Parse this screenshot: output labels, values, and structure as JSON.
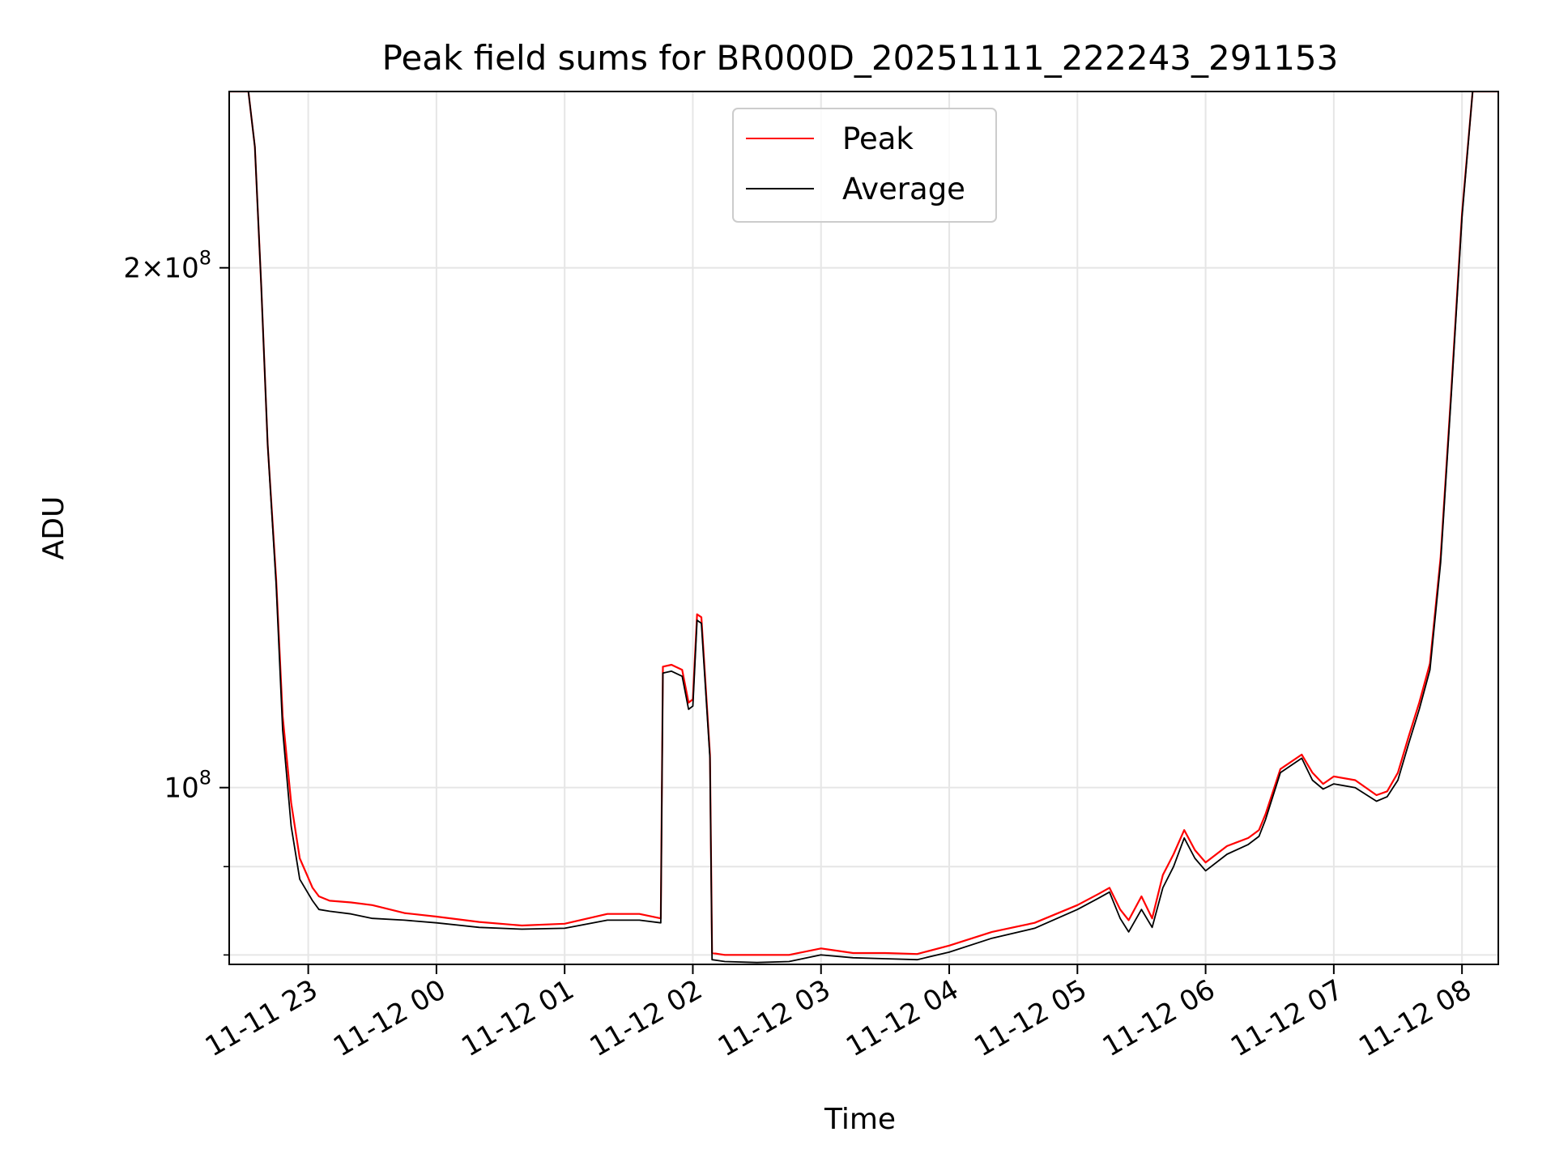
{
  "chart_data": {
    "type": "line",
    "title": "Peak field sums for BR000D_20251111_222243_291153",
    "xlabel": "Time",
    "ylabel": "ADU",
    "y_scale": "log",
    "ylim": [
      79000000,
      253000000
    ],
    "xlim": [
      "2025-11-11 22:23",
      "2025-11-12 08:17"
    ],
    "grid": true,
    "legend_position": "top-center",
    "x_ticks": [
      "2025-11-11 23:00",
      "2025-11-12 00:00",
      "2025-11-12 01:00",
      "2025-11-12 02:00",
      "2025-11-12 03:00",
      "2025-11-12 04:00",
      "2025-11-12 05:00",
      "2025-11-12 06:00",
      "2025-11-12 07:00",
      "2025-11-12 08:00"
    ],
    "x_tick_labels": [
      "11-11 23",
      "11-12 00",
      "11-12 01",
      "11-12 02",
      "11-12 03",
      "11-12 04",
      "11-12 05",
      "11-12 06",
      "11-12 07",
      "11-12 08"
    ],
    "y_ticks": [
      100000000,
      200000000
    ],
    "y_tick_labels": [
      {
        "base": "10",
        "exp": "8"
      },
      {
        "mantissa": "2",
        "base": "10",
        "exp": "8"
      }
    ],
    "series": [
      {
        "name": "Peak",
        "color": "#ff0000",
        "x": [
          "2025-11-11 22:23",
          "2025-11-11 22:32",
          "2025-11-11 22:35",
          "2025-11-11 22:38",
          "2025-11-11 22:41",
          "2025-11-11 22:45",
          "2025-11-11 22:48",
          "2025-11-11 22:52",
          "2025-11-11 22:56",
          "2025-11-11 23:02",
          "2025-11-11 23:05",
          "2025-11-11 23:10",
          "2025-11-11 23:20",
          "2025-11-11 23:30",
          "2025-11-11 23:45",
          "2025-11-12 00:00",
          "2025-11-12 00:20",
          "2025-11-12 00:40",
          "2025-11-12 01:00",
          "2025-11-12 01:20",
          "2025-11-12 01:35",
          "2025-11-12 01:45",
          "2025-11-12 01:46",
          "2025-11-12 01:50",
          "2025-11-12 01:55",
          "2025-11-12 01:58",
          "2025-11-12 02:00",
          "2025-11-12 02:02",
          "2025-11-12 02:04",
          "2025-11-12 02:08",
          "2025-11-12 02:09",
          "2025-11-12 02:15",
          "2025-11-12 02:30",
          "2025-11-12 02:45",
          "2025-11-12 03:00",
          "2025-11-12 03:15",
          "2025-11-12 03:30",
          "2025-11-12 03:45",
          "2025-11-12 04:00",
          "2025-11-12 04:20",
          "2025-11-12 04:40",
          "2025-11-12 05:00",
          "2025-11-12 05:10",
          "2025-11-12 05:15",
          "2025-11-12 05:20",
          "2025-11-12 05:24",
          "2025-11-12 05:30",
          "2025-11-12 05:35",
          "2025-11-12 05:40",
          "2025-11-12 05:45",
          "2025-11-12 05:50",
          "2025-11-12 05:55",
          "2025-11-12 06:00",
          "2025-11-12 06:10",
          "2025-11-12 06:20",
          "2025-11-12 06:25",
          "2025-11-12 06:28",
          "2025-11-12 06:35",
          "2025-11-12 06:45",
          "2025-11-12 06:50",
          "2025-11-12 06:55",
          "2025-11-12 07:00",
          "2025-11-12 07:10",
          "2025-11-12 07:20",
          "2025-11-12 07:25",
          "2025-11-12 07:30",
          "2025-11-12 07:35",
          "2025-11-12 07:40",
          "2025-11-12 07:45",
          "2025-11-12 07:50",
          "2025-11-12 07:55",
          "2025-11-12 08:00",
          "2025-11-12 08:05",
          "2025-11-12 08:17"
        ],
        "y": [
          253000000,
          253000000,
          235000000,
          195000000,
          158000000,
          132000000,
          110000000,
          98000000,
          91000000,
          87500000,
          86500000,
          86000000,
          85800000,
          85500000,
          84600000,
          84200000,
          83600000,
          83200000,
          83400000,
          84500000,
          84500000,
          84000000,
          117500000,
          117800000,
          117000000,
          112000000,
          112500000,
          126000000,
          125500000,
          104500000,
          80200000,
          80000000,
          80000000,
          80000000,
          80700000,
          80200000,
          80200000,
          80100000,
          81000000,
          82500000,
          83500000,
          85500000,
          86800000,
          87500000,
          85000000,
          83800000,
          86500000,
          84000000,
          89000000,
          91500000,
          94500000,
          92000000,
          90500000,
          92500000,
          93500000,
          94500000,
          96500000,
          102500000,
          104500000,
          102000000,
          100500000,
          101500000,
          101000000,
          99000000,
          99500000,
          102000000,
          107000000,
          112000000,
          118000000,
          136000000,
          170000000,
          215000000,
          253000000,
          253000000
        ]
      },
      {
        "name": "Average",
        "color": "#000000",
        "x": [
          "2025-11-11 22:23",
          "2025-11-11 22:32",
          "2025-11-11 22:35",
          "2025-11-11 22:38",
          "2025-11-11 22:41",
          "2025-11-11 22:45",
          "2025-11-11 22:48",
          "2025-11-11 22:52",
          "2025-11-11 22:56",
          "2025-11-11 23:02",
          "2025-11-11 23:05",
          "2025-11-11 23:10",
          "2025-11-11 23:20",
          "2025-11-11 23:30",
          "2025-11-11 23:45",
          "2025-11-12 00:00",
          "2025-11-12 00:20",
          "2025-11-12 00:40",
          "2025-11-12 01:00",
          "2025-11-12 01:20",
          "2025-11-12 01:35",
          "2025-11-12 01:45",
          "2025-11-12 01:46",
          "2025-11-12 01:50",
          "2025-11-12 01:55",
          "2025-11-12 01:58",
          "2025-11-12 02:00",
          "2025-11-12 02:02",
          "2025-11-12 02:04",
          "2025-11-12 02:08",
          "2025-11-12 02:09",
          "2025-11-12 02:15",
          "2025-11-12 02:30",
          "2025-11-12 02:45",
          "2025-11-12 03:00",
          "2025-11-12 03:15",
          "2025-11-12 03:30",
          "2025-11-12 03:45",
          "2025-11-12 04:00",
          "2025-11-12 04:20",
          "2025-11-12 04:40",
          "2025-11-12 05:00",
          "2025-11-12 05:10",
          "2025-11-12 05:15",
          "2025-11-12 05:20",
          "2025-11-12 05:24",
          "2025-11-12 05:30",
          "2025-11-12 05:35",
          "2025-11-12 05:40",
          "2025-11-12 05:45",
          "2025-11-12 05:50",
          "2025-11-12 05:55",
          "2025-11-12 06:00",
          "2025-11-12 06:10",
          "2025-11-12 06:20",
          "2025-11-12 06:25",
          "2025-11-12 06:28",
          "2025-11-12 06:35",
          "2025-11-12 06:45",
          "2025-11-12 06:50",
          "2025-11-12 06:55",
          "2025-11-12 07:00",
          "2025-11-12 07:10",
          "2025-11-12 07:20",
          "2025-11-12 07:25",
          "2025-11-12 07:30",
          "2025-11-12 07:35",
          "2025-11-12 07:40",
          "2025-11-12 07:45",
          "2025-11-12 07:50",
          "2025-11-12 07:55",
          "2025-11-12 08:00",
          "2025-11-12 08:05",
          "2025-11-12 08:17"
        ],
        "y": [
          253000000,
          253000000,
          235000000,
          195000000,
          158000000,
          131000000,
          108000000,
          95000000,
          88500000,
          86000000,
          85000000,
          84800000,
          84500000,
          84000000,
          83800000,
          83500000,
          83000000,
          82800000,
          82900000,
          83800000,
          83800000,
          83500000,
          116500000,
          116800000,
          116000000,
          111000000,
          111500000,
          125000000,
          124500000,
          104000000,
          79500000,
          79300000,
          79200000,
          79300000,
          80000000,
          79700000,
          79600000,
          79500000,
          80300000,
          81800000,
          82900000,
          85000000,
          86300000,
          87000000,
          84000000,
          82500000,
          85000000,
          83000000,
          87500000,
          90000000,
          93500000,
          91000000,
          89500000,
          91500000,
          92700000,
          93700000,
          95800000,
          102000000,
          104000000,
          101000000,
          99800000,
          100500000,
          100000000,
          98200000,
          98800000,
          101000000,
          106000000,
          111000000,
          117000000,
          135000000,
          169000000,
          214000000,
          253000000,
          253000000
        ]
      }
    ]
  }
}
